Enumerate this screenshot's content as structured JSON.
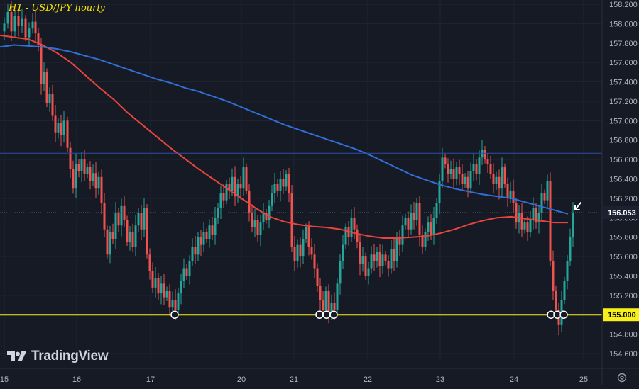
{
  "chart_data": {
    "type": "candlestick",
    "title": "H1 - USD/JPY hourly",
    "price_label": "156.053",
    "level_label": "155.000",
    "watermark": "TradingView",
    "ylim": [
      154.52,
      158.25
    ],
    "y_ticks": [
      "158.200",
      "158.000",
      "157.800",
      "157.600",
      "157.400",
      "157.200",
      "157.000",
      "156.800",
      "156.600",
      "156.400",
      "156.200",
      "156.000",
      "155.800",
      "155.600",
      "155.400",
      "155.200",
      "155.000",
      "154.800",
      "154.600"
    ],
    "x_ticks": [
      "15",
      "16",
      "17",
      "20",
      "21",
      "22",
      "23",
      "24",
      "25"
    ],
    "horizontal_lines": [
      {
        "value": 156.665,
        "color": "#2a4ea6"
      },
      {
        "value": 155.0,
        "color": "#f7f01a"
      }
    ],
    "current_price": 156.053,
    "touch_markers_count": 7,
    "colors": {
      "background": "#161a25",
      "up": "#26a69a",
      "down": "#ef5350",
      "ma_fast": "#e9443d",
      "ma_slow": "#2f6fd6",
      "level": "#f7f01a",
      "text": "#b2b5be"
    },
    "moving_averages": [
      {
        "points": [
          [
            0,
            157.88
          ],
          [
            20,
            157.86
          ],
          [
            40,
            157.84
          ],
          [
            60,
            157.78
          ],
          [
            80,
            157.7
          ],
          [
            100,
            157.6
          ],
          [
            120,
            157.47
          ],
          [
            140,
            157.34
          ],
          [
            160,
            157.22
          ],
          [
            180,
            157.08
          ],
          [
            200,
            156.96
          ],
          [
            220,
            156.84
          ],
          [
            240,
            156.72
          ],
          [
            260,
            156.61
          ],
          [
            280,
            156.5
          ],
          [
            300,
            156.4
          ],
          [
            320,
            156.3
          ],
          [
            340,
            156.2
          ],
          [
            360,
            156.1
          ],
          [
            380,
            156.01
          ],
          [
            400,
            155.96
          ],
          [
            420,
            155.93
          ],
          [
            440,
            155.91
          ],
          [
            460,
            155.9
          ],
          [
            480,
            155.88
          ],
          [
            500,
            155.84
          ],
          [
            520,
            155.81
          ],
          [
            540,
            155.79
          ],
          [
            560,
            155.79
          ],
          [
            580,
            155.8
          ],
          [
            600,
            155.81
          ],
          [
            620,
            155.84
          ],
          [
            640,
            155.88
          ],
          [
            660,
            155.93
          ],
          [
            680,
            155.97
          ],
          [
            700,
            156.0
          ],
          [
            720,
            156.01
          ],
          [
            740,
            155.99
          ],
          [
            760,
            155.97
          ],
          [
            780,
            155.95
          ],
          [
            800,
            155.95
          ]
        ]
      },
      {
        "points": [
          [
            0,
            157.76
          ],
          [
            20,
            157.78
          ],
          [
            40,
            157.77
          ],
          [
            60,
            157.76
          ],
          [
            80,
            157.74
          ],
          [
            100,
            157.71
          ],
          [
            120,
            157.67
          ],
          [
            140,
            157.63
          ],
          [
            160,
            157.58
          ],
          [
            180,
            157.53
          ],
          [
            200,
            157.48
          ],
          [
            220,
            157.43
          ],
          [
            240,
            157.39
          ],
          [
            260,
            157.34
          ],
          [
            280,
            157.3
          ],
          [
            300,
            157.25
          ],
          [
            320,
            157.2
          ],
          [
            340,
            157.14
          ],
          [
            360,
            157.08
          ],
          [
            380,
            157.02
          ],
          [
            400,
            156.96
          ],
          [
            420,
            156.91
          ],
          [
            440,
            156.86
          ],
          [
            460,
            156.81
          ],
          [
            480,
            156.76
          ],
          [
            500,
            156.71
          ],
          [
            520,
            156.65
          ],
          [
            540,
            156.58
          ],
          [
            560,
            156.51
          ],
          [
            580,
            156.44
          ],
          [
            600,
            156.39
          ],
          [
            620,
            156.34
          ],
          [
            640,
            156.3
          ],
          [
            660,
            156.27
          ],
          [
            680,
            156.24
          ],
          [
            700,
            156.22
          ],
          [
            720,
            156.2
          ],
          [
            740,
            156.16
          ],
          [
            760,
            156.12
          ],
          [
            780,
            156.08
          ],
          [
            800,
            156.04
          ]
        ]
      }
    ],
    "price_path": [
      [
        0,
        157.92
      ],
      [
        4,
        158.0
      ],
      [
        9,
        158.12
      ],
      [
        14,
        157.92
      ],
      [
        19,
        158.08
      ],
      [
        24,
        157.98
      ],
      [
        29,
        158.05
      ],
      [
        34,
        157.86
      ],
      [
        39,
        157.95
      ],
      [
        44,
        158.02
      ],
      [
        48,
        157.9
      ],
      [
        52,
        157.78
      ],
      [
        56,
        157.38
      ],
      [
        60,
        157.5
      ],
      [
        64,
        157.18
      ],
      [
        68,
        157.28
      ],
      [
        72,
        157.05
      ],
      [
        76,
        156.88
      ],
      [
        80,
        156.98
      ],
      [
        84,
        156.85
      ],
      [
        88,
        157.0
      ],
      [
        93,
        156.72
      ],
      [
        97,
        156.5
      ],
      [
        101,
        156.3
      ],
      [
        105,
        156.55
      ],
      [
        109,
        156.48
      ],
      [
        113,
        156.6
      ],
      [
        117,
        156.45
      ],
      [
        121,
        156.52
      ],
      [
        125,
        156.38
      ],
      [
        129,
        156.46
      ],
      [
        133,
        156.3
      ],
      [
        137,
        156.42
      ],
      [
        141,
        156.15
      ],
      [
        145,
        155.88
      ],
      [
        149,
        155.62
      ],
      [
        153,
        155.85
      ],
      [
        157,
        155.78
      ],
      [
        161,
        156.05
      ],
      [
        165,
        155.92
      ],
      [
        169,
        156.12
      ],
      [
        173,
        155.98
      ],
      [
        177,
        155.75
      ],
      [
        181,
        155.85
      ],
      [
        185,
        155.7
      ],
      [
        189,
        155.92
      ],
      [
        193,
        156.05
      ],
      [
        197,
        155.88
      ],
      [
        201,
        156.1
      ],
      [
        205,
        155.62
      ],
      [
        209,
        155.45
      ],
      [
        213,
        155.28
      ],
      [
        217,
        155.38
      ],
      [
        221,
        155.22
      ],
      [
        225,
        155.32
      ],
      [
        229,
        155.18
      ],
      [
        233,
        155.25
      ],
      [
        237,
        155.08
      ],
      [
        241,
        155.15
      ],
      [
        245,
        155.05
      ],
      [
        249,
        155.22
      ],
      [
        253,
        155.35
      ],
      [
        257,
        155.48
      ],
      [
        261,
        155.4
      ],
      [
        265,
        155.55
      ],
      [
        269,
        155.7
      ],
      [
        273,
        155.62
      ],
      [
        277,
        155.8
      ],
      [
        281,
        155.72
      ],
      [
        285,
        155.85
      ],
      [
        289,
        155.78
      ],
      [
        293,
        155.92
      ],
      [
        297,
        155.82
      ],
      [
        301,
        156.0
      ],
      [
        305,
        156.1
      ],
      [
        309,
        156.25
      ],
      [
        313,
        156.18
      ],
      [
        317,
        156.35
      ],
      [
        321,
        156.28
      ],
      [
        325,
        156.42
      ],
      [
        329,
        156.22
      ],
      [
        333,
        156.35
      ],
      [
        337,
        156.3
      ],
      [
        341,
        156.52
      ],
      [
        345,
        156.28
      ],
      [
        349,
        156.05
      ],
      [
        353,
        155.9
      ],
      [
        357,
        155.98
      ],
      [
        361,
        155.82
      ],
      [
        365,
        155.95
      ],
      [
        369,
        156.05
      ],
      [
        373,
        155.98
      ],
      [
        377,
        156.12
      ],
      [
        381,
        156.25
      ],
      [
        385,
        156.35
      ],
      [
        389,
        156.28
      ],
      [
        393,
        156.4
      ],
      [
        397,
        156.32
      ],
      [
        401,
        156.45
      ],
      [
        405,
        156.25
      ],
      [
        409,
        155.7
      ],
      [
        413,
        155.55
      ],
      [
        417,
        155.72
      ],
      [
        421,
        155.6
      ],
      [
        425,
        155.78
      ],
      [
        429,
        155.9
      ],
      [
        433,
        155.7
      ],
      [
        437,
        155.62
      ],
      [
        441,
        155.48
      ],
      [
        445,
        155.3
      ],
      [
        449,
        155.15
      ],
      [
        453,
        155.05
      ],
      [
        457,
        155.25
      ],
      [
        461,
        155.0
      ],
      [
        465,
        155.12
      ],
      [
        469,
        155.05
      ],
      [
        473,
        155.32
      ],
      [
        477,
        155.55
      ],
      [
        481,
        155.72
      ],
      [
        485,
        155.9
      ],
      [
        489,
        155.8
      ],
      [
        493,
        156.0
      ],
      [
        497,
        155.88
      ],
      [
        501,
        155.75
      ],
      [
        505,
        155.52
      ],
      [
        509,
        155.6
      ],
      [
        513,
        155.4
      ],
      [
        517,
        155.48
      ],
      [
        521,
        155.62
      ],
      [
        525,
        155.55
      ],
      [
        529,
        155.65
      ],
      [
        533,
        155.5
      ],
      [
        537,
        155.62
      ],
      [
        541,
        155.55
      ],
      [
        545,
        155.48
      ],
      [
        549,
        155.68
      ],
      [
        553,
        155.55
      ],
      [
        557,
        155.8
      ],
      [
        561,
        155.72
      ],
      [
        565,
        155.92
      ],
      [
        569,
        156.0
      ],
      [
        573,
        155.88
      ],
      [
        577,
        156.05
      ],
      [
        581,
        155.98
      ],
      [
        585,
        156.15
      ],
      [
        589,
        155.82
      ],
      [
        593,
        155.7
      ],
      [
        597,
        155.85
      ],
      [
        601,
        155.95
      ],
      [
        605,
        155.82
      ],
      [
        609,
        156.0
      ],
      [
        613,
        156.15
      ],
      [
        617,
        156.38
      ],
      [
        621,
        156.62
      ],
      [
        625,
        156.55
      ],
      [
        629,
        156.45
      ],
      [
        633,
        156.5
      ],
      [
        637,
        156.4
      ],
      [
        641,
        156.52
      ],
      [
        645,
        156.45
      ],
      [
        649,
        156.35
      ],
      [
        653,
        156.42
      ],
      [
        657,
        156.3
      ],
      [
        661,
        156.48
      ],
      [
        665,
        156.55
      ],
      [
        669,
        156.45
      ],
      [
        673,
        156.62
      ],
      [
        677,
        156.7
      ],
      [
        681,
        156.6
      ],
      [
        685,
        156.55
      ],
      [
        689,
        156.45
      ],
      [
        693,
        156.35
      ],
      [
        697,
        156.42
      ],
      [
        701,
        156.3
      ],
      [
        705,
        156.52
      ],
      [
        709,
        156.35
      ],
      [
        713,
        156.2
      ],
      [
        717,
        156.28
      ],
      [
        721,
        156.15
      ],
      [
        725,
        155.95
      ],
      [
        729,
        156.05
      ],
      [
        733,
        155.88
      ],
      [
        737,
        155.95
      ],
      [
        741,
        155.85
      ],
      [
        745,
        155.98
      ],
      [
        749,
        156.1
      ],
      [
        753,
        155.95
      ],
      [
        757,
        156.05
      ],
      [
        761,
        156.25
      ],
      [
        765,
        156.18
      ],
      [
        769,
        156.38
      ],
      [
        773,
        155.55
      ],
      [
        777,
        155.25
      ],
      [
        781,
        155.05
      ],
      [
        785,
        154.9
      ],
      [
        789,
        155.15
      ],
      [
        793,
        155.35
      ],
      [
        797,
        155.55
      ],
      [
        801,
        155.8
      ],
      [
        805,
        156.05
      ]
    ]
  }
}
